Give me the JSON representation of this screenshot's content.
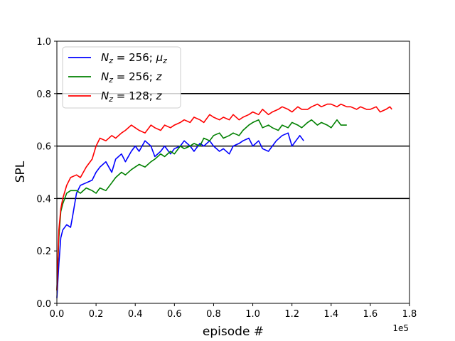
{
  "chart_data": {
    "type": "line",
    "xlabel": "episode #",
    "ylabel": "SPL",
    "x_offset_label": "1e5",
    "xlim": [
      0,
      1.8
    ],
    "ylim": [
      0,
      1.0
    ],
    "xticks": [
      0.0,
      0.2,
      0.4,
      0.6,
      0.8,
      1.0,
      1.2,
      1.4,
      1.6,
      1.8
    ],
    "yticks": [
      0.0,
      0.2,
      0.4,
      0.6,
      0.8,
      1.0
    ],
    "xtick_labels": [
      "0.0",
      "0.2",
      "0.4",
      "0.6",
      "0.8",
      "1.0",
      "1.2",
      "1.4",
      "1.6",
      "1.8"
    ],
    "ytick_labels": [
      "0.0",
      "0.2",
      "0.4",
      "0.6",
      "0.8",
      "1.0"
    ],
    "reference_lines": [
      0.4,
      0.6,
      0.8
    ],
    "legend_position": "upper-left",
    "series": [
      {
        "legend_main": "N",
        "legend_sub": "z",
        "legend_rest": " = 256; ",
        "legend_tail_main": "μ",
        "legend_tail_sub": "z",
        "color": "#0000ff",
        "x": [
          0.0,
          0.01,
          0.02,
          0.03,
          0.05,
          0.07,
          0.08,
          0.1,
          0.12,
          0.15,
          0.18,
          0.2,
          0.22,
          0.25,
          0.28,
          0.3,
          0.33,
          0.35,
          0.38,
          0.4,
          0.42,
          0.45,
          0.48,
          0.5,
          0.53,
          0.55,
          0.58,
          0.6,
          0.63,
          0.65,
          0.68,
          0.7,
          0.73,
          0.75,
          0.78,
          0.8,
          0.83,
          0.85,
          0.88,
          0.9,
          0.93,
          0.95,
          0.98,
          1.0,
          1.03,
          1.05,
          1.08,
          1.1,
          1.12,
          1.15,
          1.18,
          1.2,
          1.22,
          1.24,
          1.26
        ],
        "y": [
          0.02,
          0.15,
          0.25,
          0.28,
          0.3,
          0.29,
          0.33,
          0.42,
          0.45,
          0.46,
          0.47,
          0.5,
          0.52,
          0.54,
          0.5,
          0.55,
          0.57,
          0.54,
          0.58,
          0.6,
          0.58,
          0.62,
          0.6,
          0.56,
          0.58,
          0.6,
          0.57,
          0.59,
          0.6,
          0.62,
          0.6,
          0.58,
          0.61,
          0.6,
          0.62,
          0.6,
          0.58,
          0.59,
          0.57,
          0.6,
          0.61,
          0.62,
          0.63,
          0.6,
          0.62,
          0.59,
          0.58,
          0.6,
          0.62,
          0.64,
          0.65,
          0.6,
          0.62,
          0.64,
          0.62
        ]
      },
      {
        "legend_main": "N",
        "legend_sub": "z",
        "legend_rest": " = 256; ",
        "legend_tail_main": "z",
        "legend_tail_sub": "",
        "color": "#008000",
        "x": [
          0.0,
          0.01,
          0.02,
          0.03,
          0.05,
          0.07,
          0.1,
          0.12,
          0.15,
          0.18,
          0.2,
          0.22,
          0.25,
          0.28,
          0.3,
          0.33,
          0.35,
          0.38,
          0.4,
          0.42,
          0.45,
          0.48,
          0.5,
          0.53,
          0.55,
          0.58,
          0.6,
          0.63,
          0.65,
          0.68,
          0.7,
          0.73,
          0.75,
          0.78,
          0.8,
          0.83,
          0.85,
          0.88,
          0.9,
          0.93,
          0.95,
          0.98,
          1.0,
          1.03,
          1.05,
          1.08,
          1.1,
          1.13,
          1.15,
          1.18,
          1.2,
          1.23,
          1.25,
          1.28,
          1.3,
          1.33,
          1.35,
          1.38,
          1.4,
          1.43,
          1.45,
          1.48
        ],
        "y": [
          0.05,
          0.25,
          0.35,
          0.38,
          0.42,
          0.43,
          0.43,
          0.42,
          0.44,
          0.43,
          0.42,
          0.44,
          0.43,
          0.46,
          0.48,
          0.5,
          0.49,
          0.51,
          0.52,
          0.53,
          0.52,
          0.54,
          0.55,
          0.57,
          0.56,
          0.58,
          0.57,
          0.6,
          0.59,
          0.6,
          0.61,
          0.6,
          0.63,
          0.62,
          0.64,
          0.65,
          0.63,
          0.64,
          0.65,
          0.64,
          0.66,
          0.68,
          0.69,
          0.7,
          0.67,
          0.68,
          0.67,
          0.66,
          0.68,
          0.67,
          0.69,
          0.68,
          0.67,
          0.69,
          0.7,
          0.68,
          0.69,
          0.68,
          0.67,
          0.7,
          0.68,
          0.68
        ]
      },
      {
        "legend_main": "N",
        "legend_sub": "z",
        "legend_rest": " = 128; ",
        "legend_tail_main": "z",
        "legend_tail_sub": "",
        "color": "#ff0000",
        "x": [
          0.0,
          0.01,
          0.02,
          0.03,
          0.05,
          0.07,
          0.1,
          0.12,
          0.15,
          0.18,
          0.2,
          0.22,
          0.25,
          0.28,
          0.3,
          0.33,
          0.35,
          0.38,
          0.4,
          0.42,
          0.45,
          0.48,
          0.5,
          0.53,
          0.55,
          0.58,
          0.6,
          0.63,
          0.65,
          0.68,
          0.7,
          0.73,
          0.75,
          0.78,
          0.8,
          0.83,
          0.85,
          0.88,
          0.9,
          0.93,
          0.95,
          0.98,
          1.0,
          1.03,
          1.05,
          1.08,
          1.1,
          1.13,
          1.15,
          1.18,
          1.2,
          1.23,
          1.25,
          1.28,
          1.3,
          1.33,
          1.35,
          1.38,
          1.4,
          1.43,
          1.45,
          1.48,
          1.5,
          1.53,
          1.55,
          1.58,
          1.6,
          1.63,
          1.65,
          1.68,
          1.7,
          1.71
        ],
        "y": [
          0.05,
          0.28,
          0.36,
          0.4,
          0.45,
          0.48,
          0.49,
          0.48,
          0.52,
          0.55,
          0.6,
          0.63,
          0.62,
          0.64,
          0.63,
          0.65,
          0.66,
          0.68,
          0.67,
          0.66,
          0.65,
          0.68,
          0.67,
          0.66,
          0.68,
          0.67,
          0.68,
          0.69,
          0.7,
          0.69,
          0.71,
          0.7,
          0.69,
          0.72,
          0.71,
          0.7,
          0.71,
          0.7,
          0.72,
          0.7,
          0.71,
          0.72,
          0.73,
          0.72,
          0.74,
          0.72,
          0.73,
          0.74,
          0.75,
          0.74,
          0.73,
          0.75,
          0.74,
          0.74,
          0.75,
          0.76,
          0.75,
          0.76,
          0.76,
          0.75,
          0.76,
          0.75,
          0.75,
          0.74,
          0.75,
          0.74,
          0.74,
          0.75,
          0.73,
          0.74,
          0.75,
          0.74
        ]
      }
    ]
  }
}
